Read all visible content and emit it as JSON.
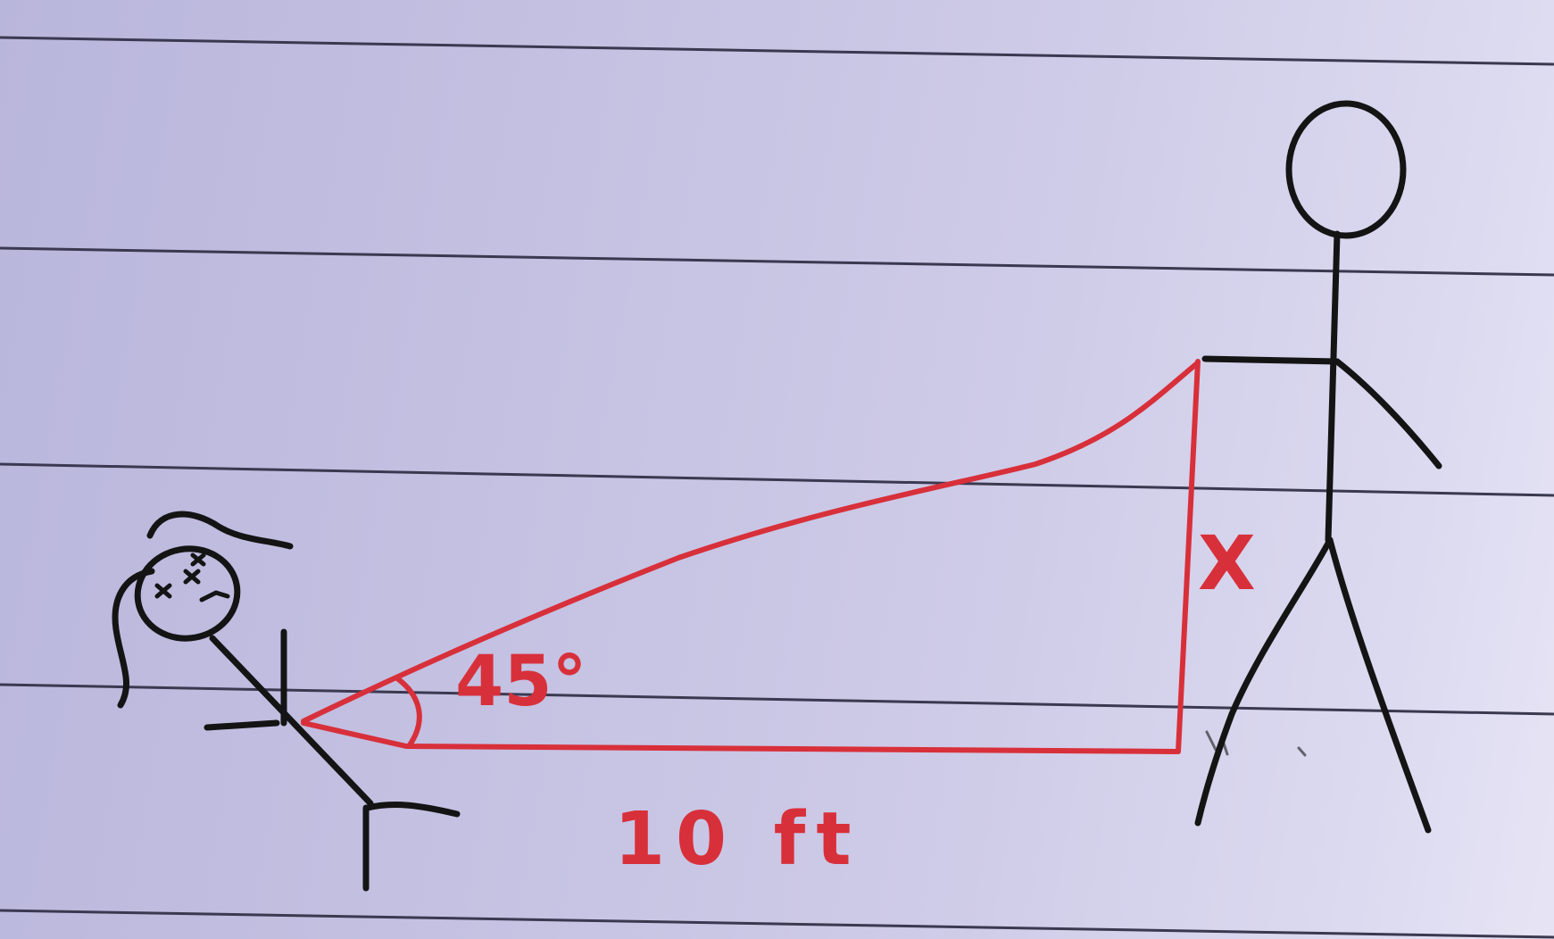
{
  "diagram": {
    "angle_label": "45°",
    "base_label": "10 ft",
    "side_label": "X",
    "colors": {
      "paper": "#c4c1e2",
      "ruled_line": "#3a3950",
      "pencil": "#141414",
      "red_ink": "#d8303a"
    }
  }
}
